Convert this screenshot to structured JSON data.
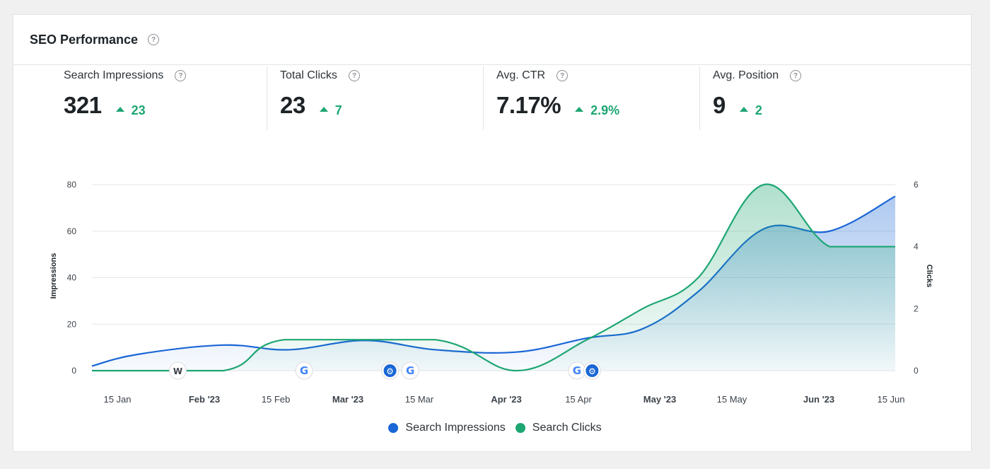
{
  "card": {
    "title": "SEO Performance",
    "help_glyph": "?"
  },
  "stats": [
    {
      "label": "Search Impressions",
      "value": "321",
      "delta": "23"
    },
    {
      "label": "Total Clicks",
      "value": "23",
      "delta": "7"
    },
    {
      "label": "Avg. CTR",
      "value": "7.17%",
      "delta": "2.9%"
    },
    {
      "label": "Avg. Position",
      "value": "9",
      "delta": "2"
    }
  ],
  "colors": {
    "impressions": "#1a66d6",
    "clicks": "#1ea672",
    "positive": "#1ea672"
  },
  "chart_data": {
    "type": "area",
    "x_ticks": [
      {
        "label": "15 Jan",
        "bold": false
      },
      {
        "label": "Feb '23",
        "bold": true
      },
      {
        "label": "15 Feb",
        "bold": false
      },
      {
        "label": "Mar '23",
        "bold": true
      },
      {
        "label": "15 Mar",
        "bold": false
      },
      {
        "label": "Apr '23",
        "bold": true
      },
      {
        "label": "15 Apr",
        "bold": false
      },
      {
        "label": "May '23",
        "bold": true
      },
      {
        "label": "15 May",
        "bold": false
      },
      {
        "label": "Jun '23",
        "bold": true
      },
      {
        "label": "15 Jun",
        "bold": false
      }
    ],
    "y_left": {
      "label": "Impressions",
      "ticks": [
        "0",
        "20",
        "40",
        "60",
        "80"
      ],
      "lim": [
        0,
        80
      ]
    },
    "y_right": {
      "label": "Clicks",
      "ticks": [
        "0",
        "2",
        "4",
        "6"
      ],
      "lim": [
        0,
        6
      ]
    },
    "x_day_range": [
      8,
      167
    ],
    "series": [
      {
        "name": "Search Impressions",
        "axis": "left",
        "points": [
          [
            8,
            2
          ],
          [
            17,
            7
          ],
          [
            34,
            11
          ],
          [
            47,
            9
          ],
          [
            62,
            13
          ],
          [
            76,
            9
          ],
          [
            92,
            8
          ],
          [
            106,
            14
          ],
          [
            117,
            18
          ],
          [
            128,
            34
          ],
          [
            141,
            61
          ],
          [
            154,
            60
          ],
          [
            167,
            75
          ]
        ]
      },
      {
        "name": "Search Clicks",
        "axis": "right",
        "points": [
          [
            8,
            0
          ],
          [
            34,
            0
          ],
          [
            46,
            1
          ],
          [
            76,
            1
          ],
          [
            92,
            0
          ],
          [
            106,
            1
          ],
          [
            117,
            2
          ],
          [
            128,
            3
          ],
          [
            141,
            6
          ],
          [
            154,
            4
          ],
          [
            167,
            4
          ]
        ]
      }
    ],
    "annotations": [
      {
        "day": 25,
        "icon": "wordpress-icon",
        "glyph": "W"
      },
      {
        "day": 50,
        "icon": "google-icon",
        "glyph": "G"
      },
      {
        "day": 67,
        "icon": "settings-icon",
        "glyph": "⚙"
      },
      {
        "day": 71,
        "icon": "google-icon",
        "glyph": "G"
      },
      {
        "day": 104,
        "icon": "google-icon",
        "glyph": "G"
      },
      {
        "day": 107,
        "icon": "settings-icon",
        "glyph": "⚙"
      }
    ],
    "legend": [
      "Search Impressions",
      "Search Clicks"
    ],
    "grid": true
  }
}
